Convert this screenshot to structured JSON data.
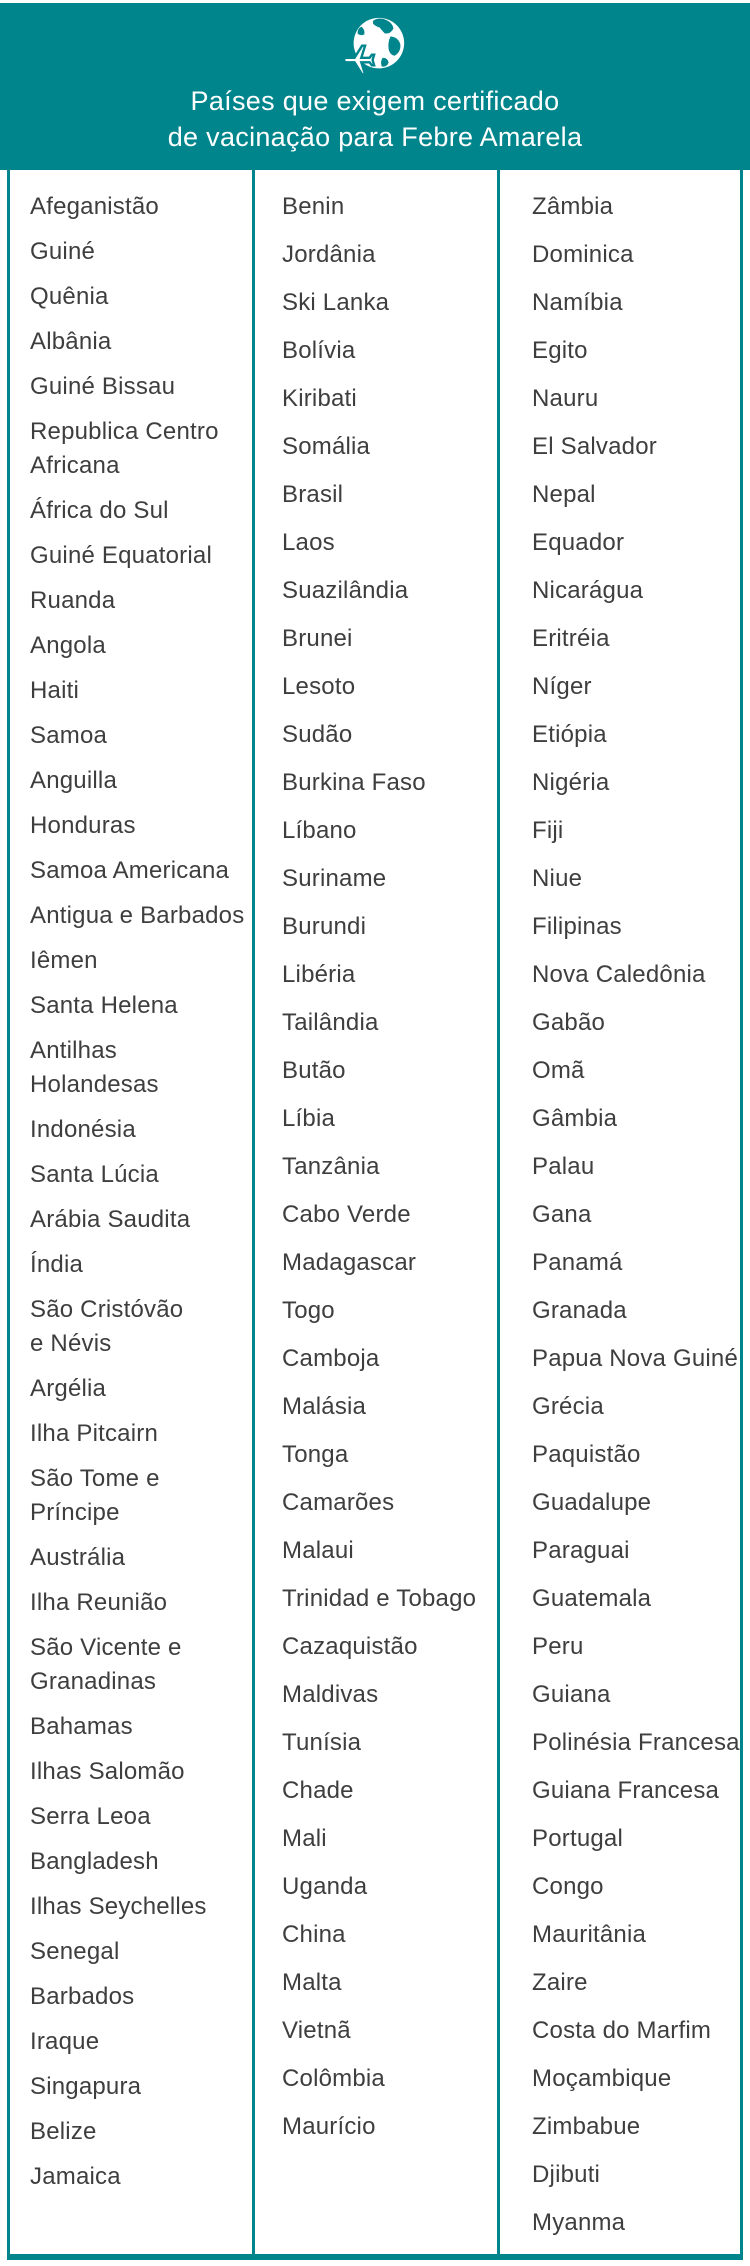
{
  "header": {
    "title_line1": "Países que exigem certificado",
    "title_line2": "de vacinação para Febre Amarela",
    "icon": "globe-airplane-icon"
  },
  "colors": {
    "accent_teal": "#00858C",
    "text": "#3E3E3E",
    "background": "#FFFFFF",
    "header_text": "#FFFFFF"
  },
  "columns": [
    {
      "items": [
        "Afeganistão",
        "Guiné",
        "Quênia",
        "Albânia",
        "Guiné Bissau",
        "Republica Centro\nAfricana",
        "África do Sul",
        "Guiné Equatorial",
        "Ruanda",
        "Angola",
        "Haiti",
        "Samoa",
        "Anguilla",
        "Honduras",
        "Samoa Americana",
        "Antigua e Barbados",
        "Iêmen",
        "Santa Helena",
        "Antilhas Holandesas",
        "Indonésia",
        "Santa Lúcia",
        "Arábia Saudita",
        "Índia",
        "São Cristóvão\ne Névis",
        "Argélia",
        "Ilha Pitcairn",
        "São Tome e Príncipe",
        "Austrália",
        "Ilha Reunião",
        "São Vicente e\nGranadinas",
        "Bahamas",
        "Ilhas Salomão",
        "Serra Leoa",
        "Bangladesh",
        "Ilhas Seychelles",
        "Senegal",
        "Barbados",
        "Iraque",
        "Singapura",
        "Belize",
        "Jamaica"
      ]
    },
    {
      "items": [
        "Benin",
        "Jordânia",
        "Ski Lanka",
        "Bolívia",
        "Kiribati",
        "Somália",
        "Brasil",
        "Laos",
        "Suazilândia",
        "Brunei",
        "Lesoto",
        "Sudão",
        "Burkina Faso",
        "Líbano",
        "Suriname",
        "Burundi",
        "Libéria",
        "Tailândia",
        "Butão",
        "Líbia",
        "Tanzânia",
        "Cabo Verde",
        "Madagascar",
        "Togo",
        "Camboja",
        "Malásia",
        "Tonga",
        "Camarões",
        "Malaui",
        "Trinidad e Tobago",
        "Cazaquistão",
        "Maldivas",
        "Tunísia",
        "Chade",
        "Mali",
        "Uganda",
        "China",
        "Malta",
        "Vietnã",
        "Colômbia",
        "Maurício"
      ]
    },
    {
      "items": [
        "Zâmbia",
        "Dominica",
        "Namíbia",
        "Egito",
        "Nauru",
        "El Salvador",
        "Nepal",
        "Equador",
        "Nicarágua",
        "Eritréia",
        "Níger",
        "Etiópia",
        "Nigéria",
        "Fiji",
        "Niue",
        "Filipinas",
        "Nova Caledônia",
        "Gabão",
        "Omã",
        "Gâmbia",
        "Palau",
        "Gana",
        "Panamá",
        "Granada",
        "Papua Nova Guiné",
        "Grécia",
        "Paquistão",
        "Guadalupe",
        "Paraguai",
        "Guatemala",
        "Peru",
        "Guiana",
        "Polinésia Francesa",
        "Guiana Francesa",
        "Portugal",
        "Congo",
        "Mauritânia",
        "Zaire",
        "Costa do Marfim",
        "Moçambique",
        "Zimbabue",
        "Djibuti",
        "Myanma"
      ]
    }
  ]
}
